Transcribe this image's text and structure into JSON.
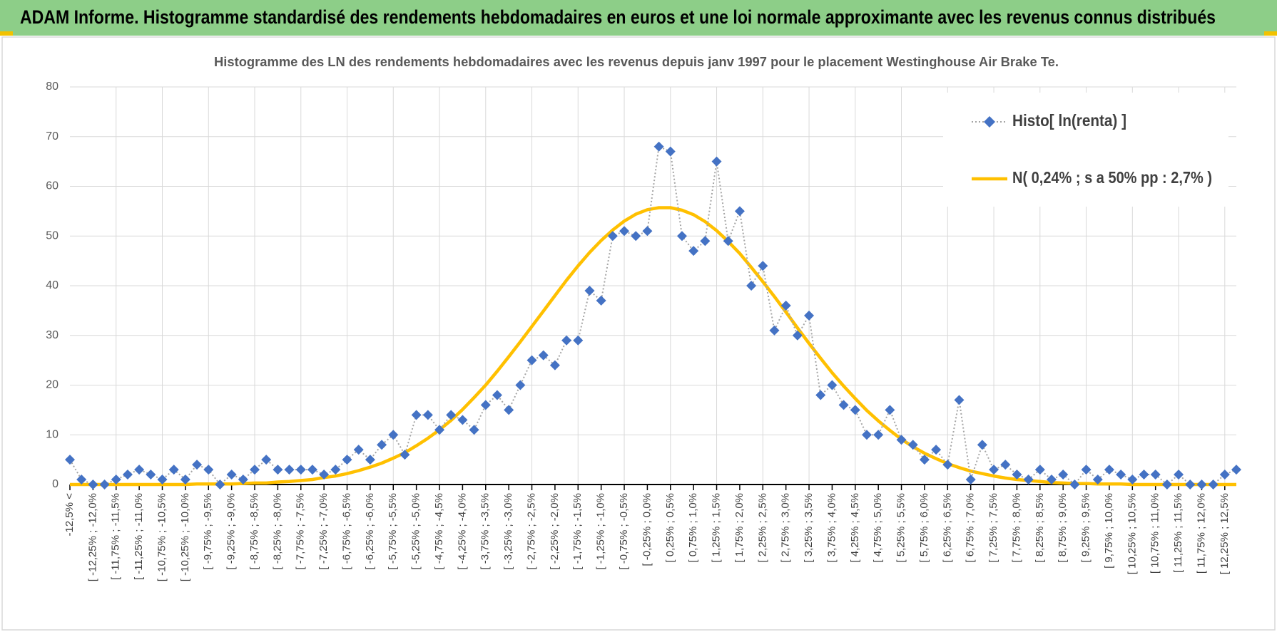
{
  "header": {
    "title": "ADAM Informe. Histogramme standardisé des rendements hebdomadaires en euros et une loi normale approximante avec les revenus connus distribués"
  },
  "chart_data": {
    "type": "line",
    "title": "Histogramme des LN des rendements hebdomadaires avec les revenus depuis janv 1997 pour le placement Westinghouse Air Brake Te.",
    "categories": [
      "-12,5% <",
      null,
      "[ -12,25% ; -12,0%",
      null,
      "[ -11,75% ; -11,5%",
      null,
      "[ -11,25% ; -11,0%",
      null,
      "[ -10,75% ; -10,5%",
      null,
      "[ -10,25% ; -10,0%",
      null,
      "[ -9,75% ; -9,5%",
      null,
      "[ -9,25% ; -9,0%",
      null,
      "[ -8,75% ; -8,5%",
      null,
      "[ -8,25% ; -8,0%",
      null,
      "[ -7,75% ; -7,5%",
      null,
      "[ -7,25% ; -7,0%",
      null,
      "[ -6,75% ; -6,5%",
      null,
      "[ -6,25% ; -6,0%",
      null,
      "[ -5,75% ; -5,5%",
      null,
      "[ -5,25% ; -5,0%",
      null,
      "[ -4,75% ; -4,5%",
      null,
      "[ -4,25% ; -4,0%",
      null,
      "[ -3,75% ; -3,5%",
      null,
      "[ -3,25% ; -3,0%",
      null,
      "[ -2,75% ; -2,5%",
      null,
      "[ -2,25% ; -2,0%",
      null,
      "[ -1,75% ; -1,5%",
      null,
      "[ -1,25% ; -1,0%",
      null,
      "[ -0,75% ; -0,5%",
      null,
      "[ -0,25% ; 0,0%",
      null,
      "[ 0,25% ; 0,5%",
      null,
      "[ 0,75% ; 1,0%",
      null,
      "[ 1,25% ; 1,5%",
      null,
      "[ 1,75% ; 2,0%",
      null,
      "[ 2,25% ; 2,5%",
      null,
      "[ 2,75% ; 3,0%",
      null,
      "[ 3,25% ; 3,5%",
      null,
      "[ 3,75% ; 4,0%",
      null,
      "[ 4,25% ; 4,5%",
      null,
      "[ 4,75% ; 5,0%",
      null,
      "[ 5,25% ; 5,5%",
      null,
      "[ 5,75% ; 6,0%",
      null,
      "[ 6,25% ; 6,5%",
      null,
      "[ 6,75% ; 7,0%",
      null,
      "[ 7,25% ; 7,5%",
      null,
      "[ 7,75% ; 8,0%",
      null,
      "[ 8,25% ; 8,5%",
      null,
      "[ 8,75% ; 9,0%",
      null,
      "[ 9,25% ; 9,5%",
      null,
      "[ 9,75% ; 10,0%",
      null,
      "[ 10,25% ; 10,5%",
      null,
      "[ 10,75% ; 11,0%",
      null,
      "[ 11,25% ; 11,5%",
      null,
      "[ 11,75% ; 12,0%",
      null,
      "[ 12,25% ; 12,5%",
      null
    ],
    "series": [
      {
        "name": "Histo[ ln(renta) ]",
        "color": "#4472c4",
        "line_color": "#a5a5a5",
        "line_style": "dotted",
        "marker": "diamond",
        "values": [
          5,
          1,
          0,
          0,
          1,
          2,
          3,
          2,
          1,
          3,
          1,
          4,
          3,
          0,
          2,
          1,
          3,
          5,
          3,
          3,
          3,
          3,
          2,
          3,
          5,
          7,
          5,
          8,
          10,
          6,
          14,
          14,
          11,
          14,
          13,
          11,
          16,
          18,
          15,
          20,
          25,
          26,
          24,
          29,
          29,
          39,
          37,
          50,
          51,
          50,
          51,
          68,
          67,
          50,
          47,
          49,
          65,
          49,
          55,
          40,
          44,
          31,
          36,
          30,
          34,
          18,
          20,
          16,
          15,
          10,
          10,
          15,
          9,
          8,
          5,
          7,
          4,
          17,
          1,
          8,
          3,
          4,
          2,
          1,
          3,
          1,
          2,
          0,
          3,
          1,
          3,
          2,
          1,
          2,
          2,
          0,
          2,
          0,
          0,
          0,
          2,
          3
        ]
      },
      {
        "name": "N( 0,24% ; s a 50% pp : 2,7% )",
        "color": "#ffc000",
        "line_style": "solid",
        "values": [
          0,
          0,
          0,
          0,
          0,
          0,
          0,
          0,
          0,
          0,
          0,
          0.1,
          0.1,
          0.1,
          0.1,
          0.2,
          0.3,
          0.3,
          0.5,
          0.6,
          0.8,
          1.0,
          1.4,
          1.7,
          2.2,
          2.8,
          3.5,
          4.3,
          5.3,
          6.4,
          7.8,
          9.3,
          11.0,
          12.9,
          15.1,
          17.5,
          20.0,
          22.8,
          25.7,
          28.7,
          31.8,
          34.9,
          38.0,
          41.1,
          44.0,
          46.7,
          49.1,
          51.2,
          53.0,
          54.4,
          55.3,
          55.7,
          55.7,
          55.2,
          54.3,
          52.9,
          51.1,
          48.9,
          46.5,
          43.7,
          40.8,
          37.8,
          34.7,
          31.5,
          28.4,
          25.4,
          22.5,
          19.8,
          17.3,
          14.9,
          12.8,
          10.9,
          9.1,
          7.6,
          6.3,
          5.2,
          4.2,
          3.4,
          2.7,
          2.2,
          1.7,
          1.3,
          1.0,
          0.8,
          0.6,
          0.4,
          0.3,
          0.2,
          0.2,
          0.1,
          0.1,
          0.1,
          0,
          0,
          0,
          0,
          0,
          0,
          0,
          0,
          0,
          0
        ]
      }
    ],
    "ylim": [
      0,
      80
    ],
    "yticks": [
      0,
      10,
      20,
      30,
      40,
      50,
      60,
      70,
      80
    ],
    "grid": true,
    "legend": "top-right"
  }
}
